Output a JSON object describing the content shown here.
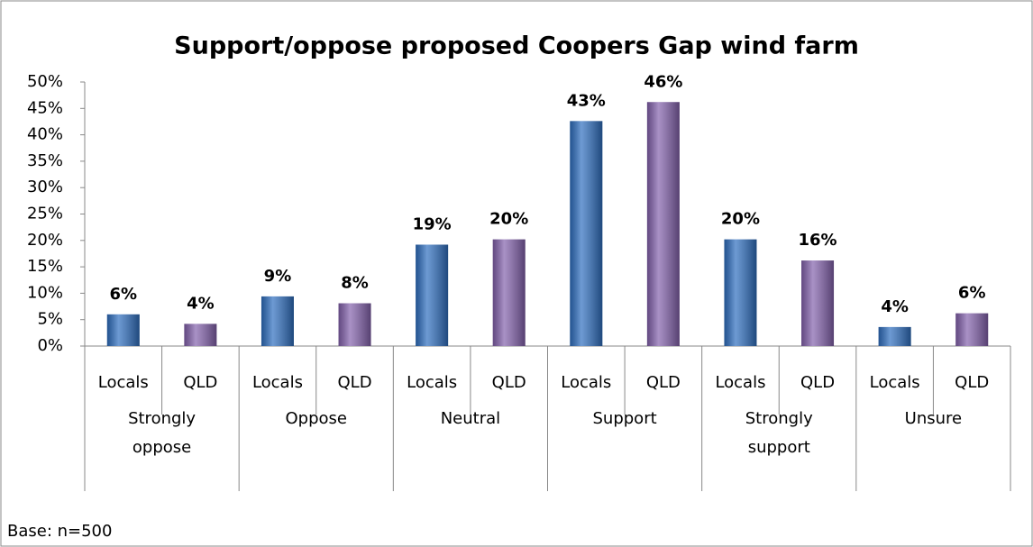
{
  "chart_data": {
    "type": "bar",
    "title": "Support/oppose proposed Coopers Gap wind farm",
    "note": "Base: n=500",
    "categories": [
      "Strongly oppose",
      "Oppose",
      "Neutral",
      "Support",
      "Strongly support",
      "Unsure"
    ],
    "series": [
      {
        "name": "Locals",
        "color": "#2f6fc0",
        "values": [
          6,
          9.4,
          19.2,
          42.6,
          20.2,
          3.6
        ],
        "value_labels": [
          "6%",
          "9%",
          "19%",
          "43%",
          "20%",
          "4%"
        ]
      },
      {
        "name": "QLD",
        "color": "#8462ad",
        "values": [
          4.2,
          8.1,
          20.2,
          46.2,
          16.2,
          6.2
        ],
        "value_labels": [
          "4%",
          "8%",
          "20%",
          "46%",
          "16%",
          "6%"
        ]
      }
    ],
    "ylim": [
      0,
      50
    ],
    "yticks": [
      {
        "value": 0,
        "label": "0%"
      },
      {
        "value": 5,
        "label": "5%"
      },
      {
        "value": 10,
        "label": "10%"
      },
      {
        "value": 15,
        "label": "15%"
      },
      {
        "value": 20,
        "label": "20%"
      },
      {
        "value": 25,
        "label": "25%"
      },
      {
        "value": 30,
        "label": "30%"
      },
      {
        "value": 35,
        "label": "35%"
      },
      {
        "value": 40,
        "label": "40%"
      },
      {
        "value": 45,
        "label": "45%"
      },
      {
        "value": 50,
        "label": "50%"
      }
    ],
    "grid": false
  }
}
